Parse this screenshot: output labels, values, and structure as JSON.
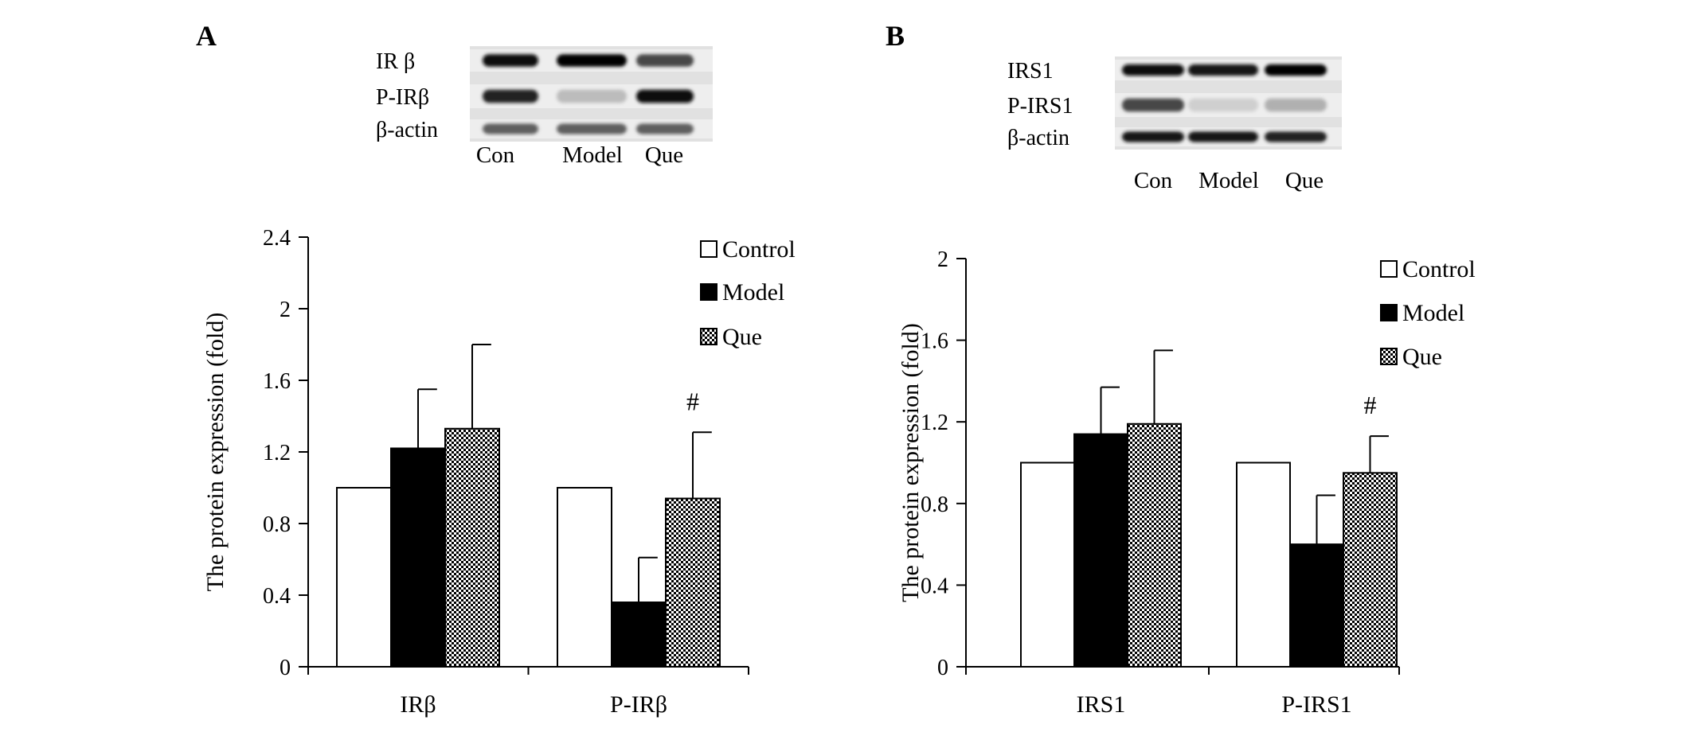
{
  "panels": [
    {
      "letter": "A",
      "blot": {
        "rows": [
          "IR β",
          "P-IRβ",
          "β-actin"
        ],
        "lanes": [
          "Con",
          "Model",
          "Que"
        ],
        "intensity": [
          [
            0.95,
            1.0,
            0.7
          ],
          [
            0.85,
            0.2,
            0.95
          ],
          [
            0.6,
            0.6,
            0.6
          ]
        ]
      }
    },
    {
      "letter": "B",
      "blot": {
        "rows": [
          "IRS1",
          "P-IRS1",
          "β-actin"
        ],
        "lanes": [
          "Con",
          "Model",
          "Que"
        ],
        "intensity": [
          [
            0.95,
            0.9,
            1.0
          ],
          [
            0.7,
            0.12,
            0.25
          ],
          [
            0.9,
            0.9,
            0.85
          ]
        ]
      }
    }
  ],
  "chart_data": [
    {
      "type": "bar",
      "title": "",
      "xlabel": "",
      "ylabel": "The protein expression (fold)",
      "categories": [
        "IRβ",
        "P-IRβ"
      ],
      "yticks": [
        "0",
        "0.4",
        "0.8",
        "1.2",
        "1.6",
        "2",
        "2.4"
      ],
      "ylim": [
        0,
        2.4
      ],
      "legend_position": "top-right",
      "series": [
        {
          "name": "Control",
          "fill": "white",
          "values": [
            1.0,
            1.0
          ],
          "errors": [
            0,
            0
          ]
        },
        {
          "name": "Model",
          "fill": "black",
          "values": [
            1.22,
            0.36
          ],
          "errors": [
            0.33,
            0.25
          ]
        },
        {
          "name": "Que",
          "fill": "checker",
          "values": [
            1.33,
            0.94
          ],
          "errors": [
            0.47,
            0.37
          ]
        }
      ],
      "annotations": [
        {
          "text": "#",
          "category": 1,
          "series": 2
        }
      ]
    },
    {
      "type": "bar",
      "title": "",
      "xlabel": "",
      "ylabel": "The protein expression (fold)",
      "categories": [
        "IRS1",
        "P-IRS1"
      ],
      "yticks": [
        "0",
        "0.4",
        "0.8",
        "1.2",
        "1.6",
        "2"
      ],
      "ylim": [
        0,
        2
      ],
      "legend_position": "top-right",
      "series": [
        {
          "name": "Control",
          "fill": "white",
          "values": [
            1.0,
            1.0
          ],
          "errors": [
            0,
            0
          ]
        },
        {
          "name": "Model",
          "fill": "black",
          "values": [
            1.14,
            0.6
          ],
          "errors": [
            0.23,
            0.24
          ]
        },
        {
          "name": "Que",
          "fill": "checker",
          "values": [
            1.19,
            0.95
          ],
          "errors": [
            0.36,
            0.18
          ]
        }
      ],
      "annotations": [
        {
          "text": "#",
          "category": 1,
          "series": 2
        }
      ]
    }
  ]
}
